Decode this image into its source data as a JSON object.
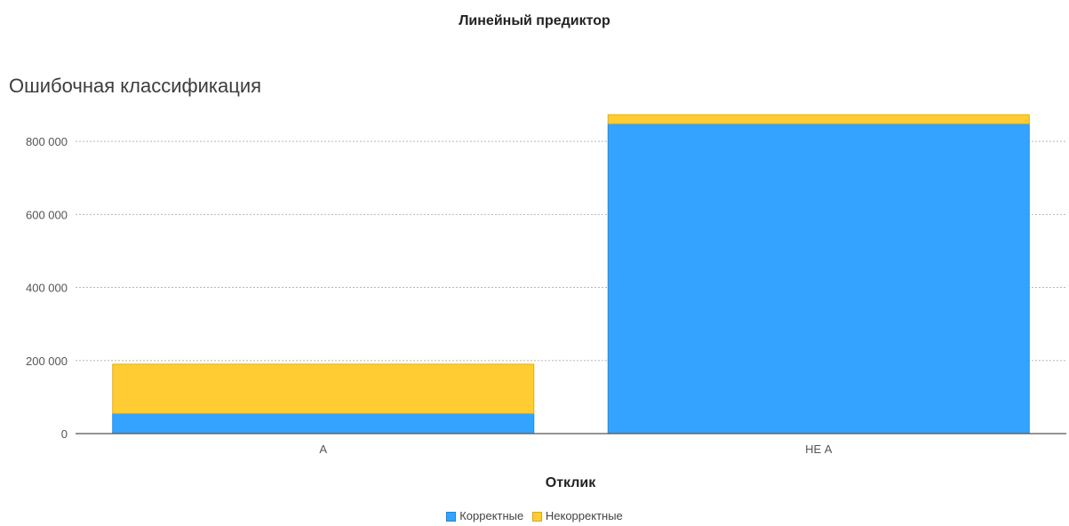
{
  "header": {
    "title": "Линейный предиктор"
  },
  "chart_data": {
    "type": "bar",
    "stacked": true,
    "title": "Ошибочная классификация",
    "xlabel": "Отклик",
    "ylabel": "",
    "categories": [
      "А",
      "НЕ А"
    ],
    "series": [
      {
        "name": "Корректные",
        "values": [
          55000,
          848000
        ],
        "color": "#33a3ff"
      },
      {
        "name": "Некорректные",
        "values": [
          135000,
          25000
        ],
        "color": "#ffcc33"
      }
    ],
    "ylim": [
      0,
      900000
    ],
    "yticks": [
      0,
      200000,
      400000,
      600000,
      800000
    ],
    "ytick_labels": [
      "0",
      "200 000",
      "400 000",
      "600 000",
      "800 000"
    ],
    "grid": true,
    "legend_position": "bottom-center"
  }
}
